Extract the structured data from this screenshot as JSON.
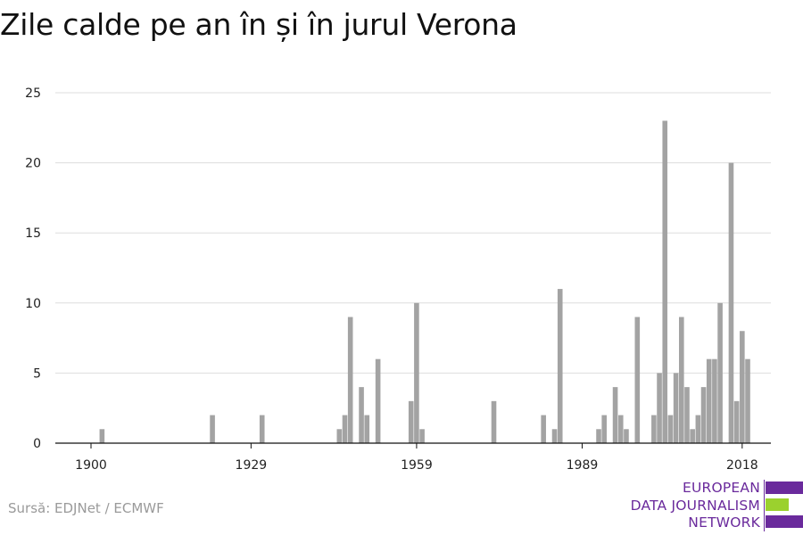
{
  "title": "Zile calde pe an în și în jurul Verona",
  "source": "Sursă: EDJNet / ECMWF",
  "logo": {
    "lines": [
      "EUROPEAN",
      "DATA JOURNALISM",
      "NETWORK"
    ],
    "colors": {
      "primary": "#6a2a9c",
      "accent": "#9bd12e"
    }
  },
  "chart_data": {
    "type": "bar",
    "title": "Zile calde pe an în și în jurul Verona",
    "xlabel": "",
    "ylabel": "",
    "xlim": [
      1900,
      2020
    ],
    "ylim": [
      0,
      25
    ],
    "x_ticks": [
      1900,
      1929,
      1959,
      1989,
      2018
    ],
    "y_ticks": [
      0,
      5,
      10,
      15,
      20,
      25
    ],
    "grid": true,
    "bar_color": "#a3a3a3",
    "x": [
      1900,
      1901,
      1902,
      1903,
      1904,
      1905,
      1906,
      1907,
      1908,
      1909,
      1910,
      1911,
      1912,
      1913,
      1914,
      1915,
      1916,
      1917,
      1918,
      1919,
      1920,
      1921,
      1922,
      1923,
      1924,
      1925,
      1926,
      1927,
      1928,
      1929,
      1930,
      1931,
      1932,
      1933,
      1934,
      1935,
      1936,
      1937,
      1938,
      1939,
      1940,
      1941,
      1942,
      1943,
      1944,
      1945,
      1946,
      1947,
      1948,
      1949,
      1950,
      1951,
      1952,
      1953,
      1954,
      1955,
      1956,
      1957,
      1958,
      1959,
      1960,
      1961,
      1962,
      1963,
      1964,
      1965,
      1966,
      1967,
      1968,
      1969,
      1970,
      1971,
      1972,
      1973,
      1974,
      1975,
      1976,
      1977,
      1978,
      1979,
      1980,
      1981,
      1982,
      1983,
      1984,
      1985,
      1986,
      1987,
      1988,
      1989,
      1990,
      1991,
      1992,
      1993,
      1994,
      1995,
      1996,
      1997,
      1998,
      1999,
      2000,
      2001,
      2002,
      2003,
      2004,
      2005,
      2006,
      2007,
      2008,
      2009,
      2010,
      2011,
      2012,
      2013,
      2014,
      2015,
      2016,
      2017,
      2018,
      2019
    ],
    "values": [
      0,
      0,
      1,
      0,
      0,
      0,
      0,
      0,
      0,
      0,
      0,
      0,
      0,
      0,
      0,
      0,
      0,
      0,
      0,
      0,
      0,
      0,
      2,
      0,
      0,
      0,
      0,
      0,
      0,
      0,
      0,
      2,
      0,
      0,
      0,
      0,
      0,
      0,
      0,
      0,
      0,
      0,
      0,
      0,
      0,
      1,
      2,
      9,
      0,
      4,
      2,
      0,
      6,
      0,
      0,
      0,
      0,
      0,
      3,
      10,
      1,
      0,
      0,
      0,
      0,
      0,
      0,
      0,
      0,
      0,
      0,
      0,
      0,
      3,
      0,
      0,
      0,
      0,
      0,
      0,
      0,
      0,
      2,
      0,
      1,
      11,
      0,
      0,
      0,
      0,
      0,
      0,
      1,
      2,
      0,
      4,
      2,
      1,
      0,
      9,
      0,
      0,
      2,
      5,
      23,
      2,
      5,
      9,
      4,
      1,
      2,
      4,
      6,
      6,
      10,
      0,
      20,
      3,
      8,
      6
    ]
  }
}
